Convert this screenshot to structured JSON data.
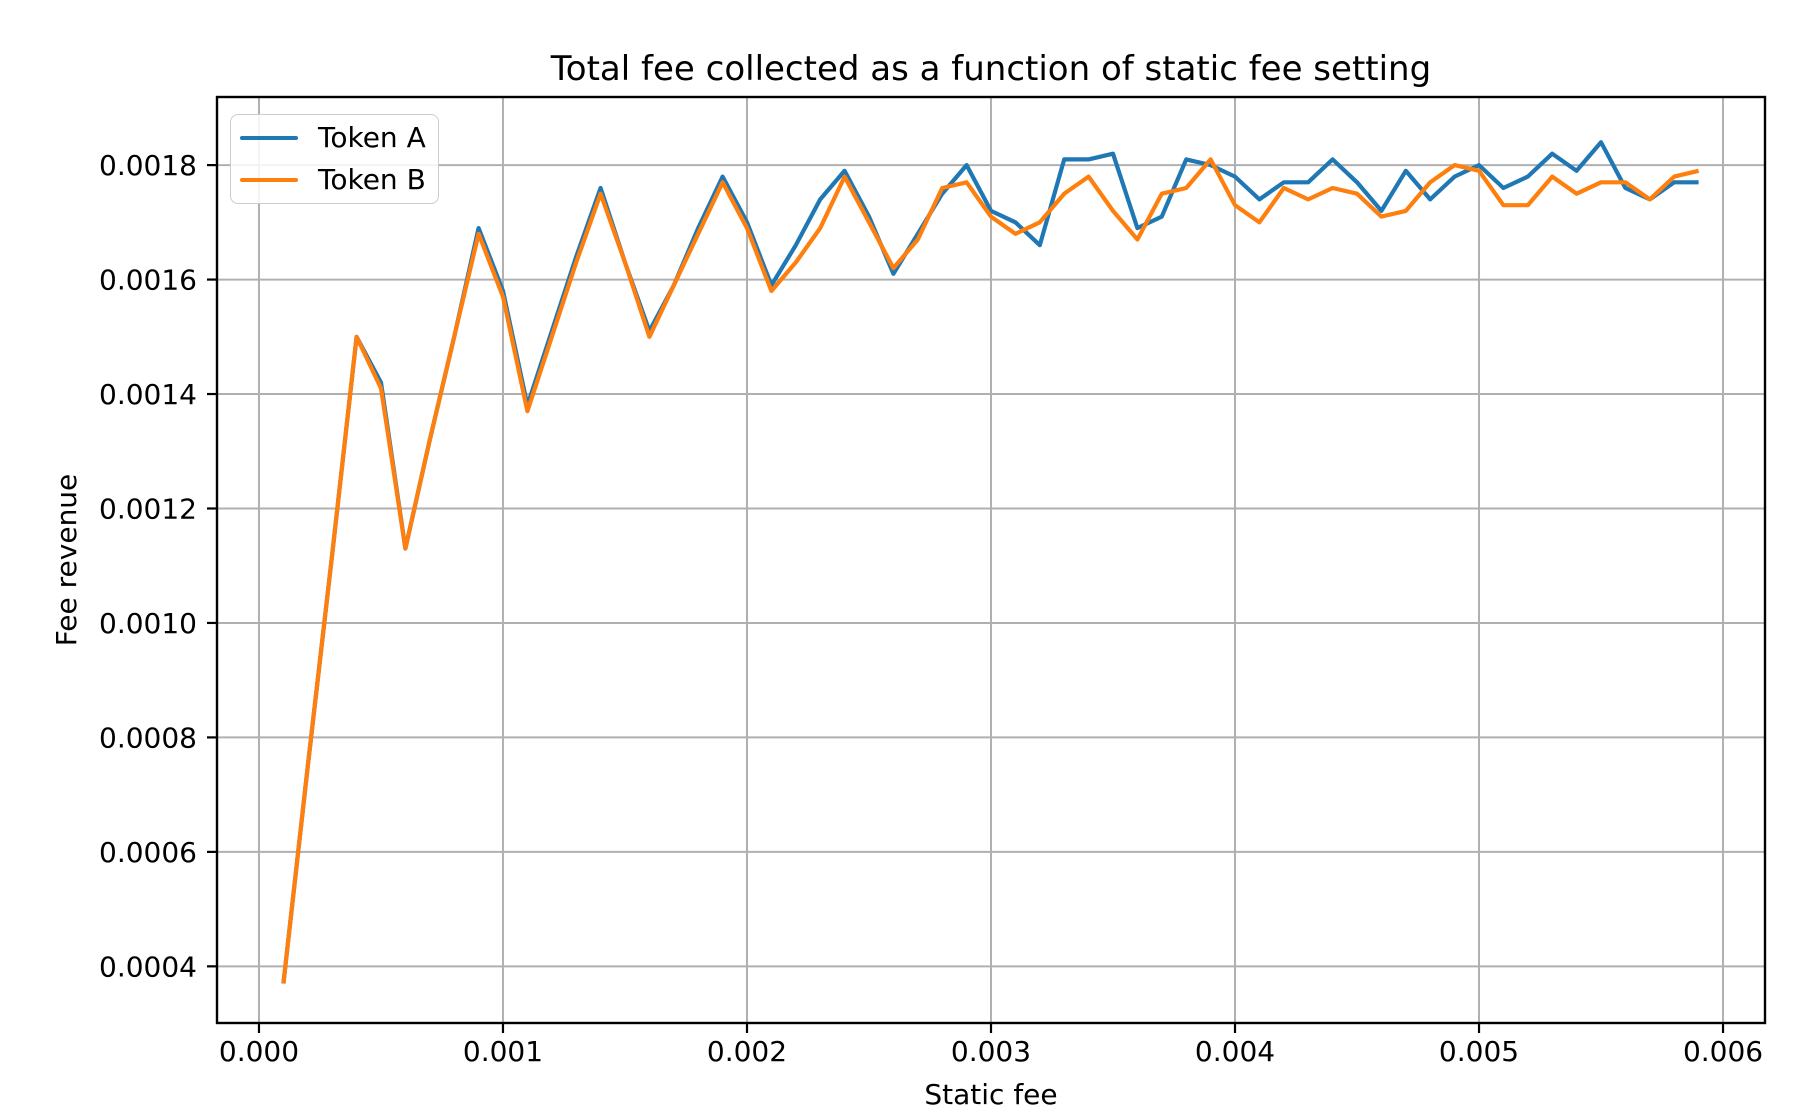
{
  "figure": {
    "background": "#ffffff",
    "text_color": "#000000",
    "grid_color": "#b0b0b0",
    "spine_color": "#000000",
    "legend_border_color": "#cccccc"
  },
  "chart_data": {
    "type": "line",
    "title": "Total fee collected as a function of static fee setting",
    "xlabel": "Static fee",
    "ylabel": "Fee revenue",
    "grid": true,
    "legend_position": "upper left",
    "xlim": [
      -0.000172,
      0.006172
    ],
    "ylim": [
      0.000301,
      0.001919
    ],
    "xticks": {
      "values": [
        0.0,
        0.001,
        0.002,
        0.003,
        0.004,
        0.005,
        0.006
      ],
      "labels": [
        "0.000",
        "0.001",
        "0.002",
        "0.003",
        "0.004",
        "0.005",
        "0.006"
      ]
    },
    "yticks": {
      "values": [
        0.0004,
        0.0006,
        0.0008,
        0.001,
        0.0012,
        0.0014,
        0.0016,
        0.0018
      ],
      "labels": [
        "0.0004",
        "0.0006",
        "0.0008",
        "0.0010",
        "0.0012",
        "0.0014",
        "0.0016",
        "0.0018"
      ]
    },
    "x": [
      0.0001,
      0.0002,
      0.0003,
      0.0004,
      0.0005,
      0.0006,
      0.0007,
      0.0008,
      0.0009,
      0.001,
      0.0011,
      0.0012,
      0.0013,
      0.0014,
      0.0015,
      0.0016,
      0.0017,
      0.0018,
      0.0019,
      0.002,
      0.0021,
      0.0022,
      0.0023,
      0.0024,
      0.0025,
      0.0026,
      0.0027,
      0.0028,
      0.0029,
      0.003,
      0.0031,
      0.0032,
      0.0033,
      0.0034,
      0.0035,
      0.0036,
      0.0037,
      0.0038,
      0.0039,
      0.004,
      0.0041,
      0.0042,
      0.0043,
      0.0044,
      0.0045,
      0.0046,
      0.0047,
      0.0048,
      0.0049,
      0.005,
      0.0051,
      0.0052,
      0.0053,
      0.0054,
      0.0055,
      0.0056,
      0.0057,
      0.0058,
      0.0059
    ],
    "series": [
      {
        "name": "Token A",
        "color": "#1f77b4",
        "values": [
          0.00037,
          0.00075,
          0.00112,
          0.0015,
          0.00142,
          0.00113,
          0.00132,
          0.0015,
          0.00169,
          0.00158,
          0.00138,
          0.00151,
          0.00164,
          0.00176,
          0.00163,
          0.00151,
          0.00159,
          0.00169,
          0.00178,
          0.0017,
          0.00159,
          0.00166,
          0.00174,
          0.00179,
          0.00171,
          0.00161,
          0.00168,
          0.00175,
          0.0018,
          0.00172,
          0.0017,
          0.00166,
          0.00181,
          0.00181,
          0.00182,
          0.00169,
          0.00171,
          0.00181,
          0.0018,
          0.00178,
          0.00174,
          0.00177,
          0.00177,
          0.00181,
          0.00177,
          0.00172,
          0.00179,
          0.00174,
          0.00178,
          0.0018,
          0.00176,
          0.00178,
          0.00182,
          0.00179,
          0.00184,
          0.00176,
          0.00174,
          0.00177,
          0.00177
        ]
      },
      {
        "name": "Token B",
        "color": "#ff7f0e",
        "values": [
          0.00037,
          0.00075,
          0.00112,
          0.0015,
          0.00141,
          0.00113,
          0.00132,
          0.0015,
          0.00168,
          0.00157,
          0.00137,
          0.0015,
          0.00163,
          0.00175,
          0.00163,
          0.0015,
          0.00159,
          0.00168,
          0.00177,
          0.00169,
          0.00158,
          0.00163,
          0.00169,
          0.00178,
          0.0017,
          0.00162,
          0.00167,
          0.00176,
          0.00177,
          0.00171,
          0.00168,
          0.0017,
          0.00175,
          0.00178,
          0.00172,
          0.00167,
          0.00175,
          0.00176,
          0.00181,
          0.00173,
          0.0017,
          0.00176,
          0.00174,
          0.00176,
          0.00175,
          0.00171,
          0.00172,
          0.00177,
          0.0018,
          0.00179,
          0.00173,
          0.00173,
          0.00178,
          0.00175,
          0.00177,
          0.00177,
          0.00174,
          0.00178,
          0.00179
        ]
      }
    ]
  },
  "legend": {
    "entry_a": "Token A",
    "entry_b": "Token B"
  }
}
